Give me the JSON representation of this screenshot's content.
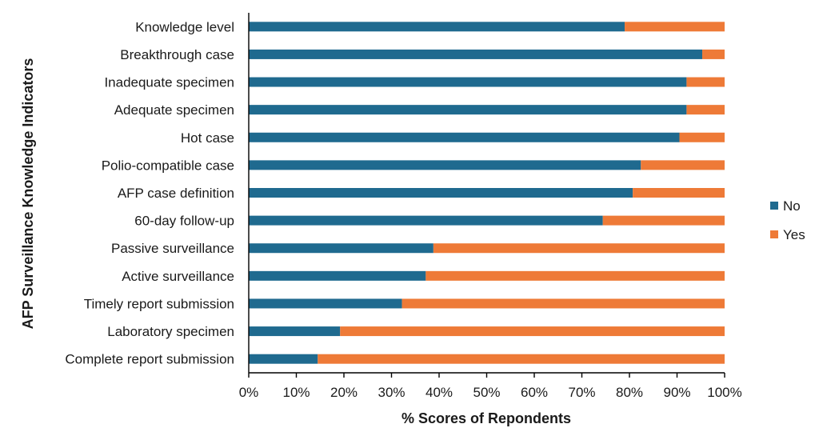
{
  "chart_data": {
    "type": "bar",
    "orientation": "horizontal",
    "stacked": true,
    "title": "",
    "xlabel": "% Scores of Repondents",
    "ylabel": "AFP Surveillance Knowledge Indicators",
    "xlim": [
      0,
      100
    ],
    "x_ticks": [
      "0%",
      "10%",
      "20%",
      "30%",
      "40%",
      "50%",
      "60%",
      "70%",
      "80%",
      "90%",
      "100%"
    ],
    "grid": false,
    "legend_position": "right",
    "categories": [
      "Knowledge level",
      "Breakthrough case",
      "Inadequate specimen",
      "Adequate specimen",
      "Hot case",
      "Polio-compatible case",
      "AFP case definition",
      "60-day follow-up",
      "Passive surveillance",
      "Active surveillance",
      "Timely report submission",
      "Laboratory specimen",
      "Complete report submission"
    ],
    "series": [
      {
        "name": "No",
        "color": "#1f6a8f",
        "values": [
          79,
          95.3,
          92,
          92,
          90.5,
          82.4,
          80.7,
          74.4,
          38.8,
          37.2,
          32.2,
          19.2,
          14.5
        ]
      },
      {
        "name": "Yes",
        "color": "#ee7a37",
        "values": [
          21,
          4.7,
          8,
          8,
          9.5,
          17.6,
          19.3,
          25.6,
          61.2,
          62.8,
          67.8,
          80.8,
          85.5
        ]
      }
    ]
  }
}
